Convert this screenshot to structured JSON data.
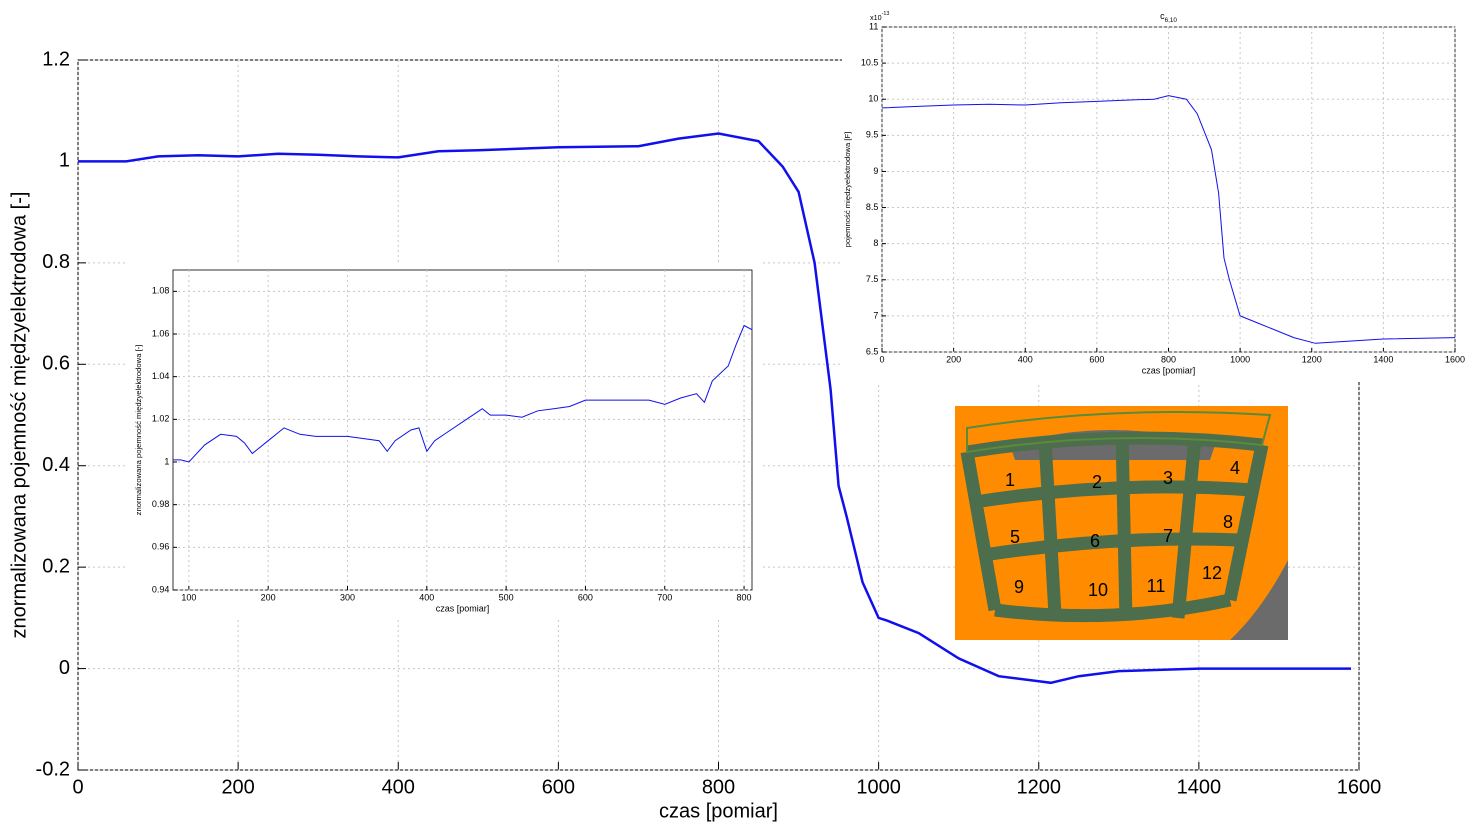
{
  "chart_data": [
    {
      "type": "line",
      "xlabel": "czas [pomiar]",
      "ylabel": "znormalizowana pojemność międzyelektrodowa [-]",
      "xlim": [
        0,
        1600
      ],
      "ylim": [
        -0.2,
        1.2
      ],
      "xticks": [
        0,
        200,
        400,
        600,
        800,
        1000,
        1200,
        1400,
        1600
      ],
      "yticks": [
        -0.2,
        0,
        0.2,
        0.4,
        0.6,
        0.8,
        1,
        1.2
      ],
      "grid": true,
      "color": "#1010ee",
      "x": [
        0,
        60,
        100,
        150,
        200,
        250,
        300,
        350,
        400,
        450,
        500,
        600,
        700,
        750,
        800,
        850,
        880,
        900,
        920,
        940,
        950,
        960,
        980,
        1000,
        1010,
        1050,
        1100,
        1150,
        1200,
        1215,
        1250,
        1300,
        1400,
        1500,
        1590
      ],
      "values": [
        1,
        1,
        1.01,
        1.012,
        1.01,
        1.015,
        1.013,
        1.01,
        1.008,
        1.02,
        1.022,
        1.028,
        1.03,
        1.045,
        1.055,
        1.04,
        0.99,
        0.94,
        0.8,
        0.55,
        0.36,
        0.3,
        0.17,
        0.1,
        0.095,
        0.07,
        0.02,
        -0.015,
        -0.025,
        -0.028,
        -0.015,
        -0.005,
        0,
        0,
        0
      ]
    },
    {
      "type": "line",
      "xlabel": "czas [pomiar]",
      "ylabel": "znormalizowana pojemność międzyelektrodowa [-]",
      "xlim": [
        80,
        810
      ],
      "ylim": [
        0.94,
        1.09
      ],
      "xticks": [
        100,
        200,
        300,
        400,
        500,
        600,
        700,
        800
      ],
      "yticks": [
        0.94,
        0.96,
        0.98,
        1,
        1.02,
        1.04,
        1.06,
        1.08
      ],
      "grid": true,
      "color": "#1010ee",
      "x": [
        80,
        90,
        100,
        120,
        140,
        160,
        170,
        180,
        200,
        220,
        240,
        260,
        300,
        340,
        350,
        360,
        380,
        390,
        400,
        410,
        430,
        450,
        470,
        480,
        500,
        520,
        540,
        560,
        580,
        600,
        640,
        680,
        700,
        720,
        740,
        750,
        760,
        780,
        790,
        800,
        810
      ],
      "values": [
        1.001,
        1.001,
        1.0,
        1.008,
        1.013,
        1.012,
        1.009,
        1.004,
        1.01,
        1.016,
        1.013,
        1.012,
        1.012,
        1.01,
        1.005,
        1.01,
        1.015,
        1.016,
        1.005,
        1.01,
        1.015,
        1.02,
        1.025,
        1.022,
        1.022,
        1.021,
        1.024,
        1.025,
        1.026,
        1.029,
        1.029,
        1.029,
        1.027,
        1.03,
        1.032,
        1.028,
        1.038,
        1.045,
        1.055,
        1.064,
        1.062
      ]
    },
    {
      "type": "line",
      "title": "c",
      "title_subscript": "6,10",
      "yscale_label": "x10",
      "yscale_exponent": "-13",
      "xlabel": "czas [pomiar]",
      "ylabel": "pojemność międzyelektrodowa [F]",
      "xlim": [
        0,
        1600
      ],
      "ylim": [
        6.5,
        11
      ],
      "xticks": [
        0,
        200,
        400,
        600,
        800,
        1000,
        1200,
        1400,
        1600
      ],
      "yticks": [
        6.5,
        7,
        7.5,
        8,
        8.5,
        9,
        9.5,
        10,
        10.5,
        11
      ],
      "grid": true,
      "color": "#1010ee",
      "x": [
        0,
        100,
        200,
        300,
        400,
        500,
        600,
        700,
        760,
        800,
        850,
        880,
        920,
        940,
        955,
        970,
        1000,
        1050,
        1150,
        1210,
        1300,
        1400,
        1600
      ],
      "values": [
        9.88,
        9.9,
        9.92,
        9.93,
        9.92,
        9.95,
        9.97,
        9.99,
        10.0,
        10.05,
        10.0,
        9.8,
        9.3,
        8.7,
        7.8,
        7.5,
        7.0,
        6.9,
        6.7,
        6.62,
        6.65,
        6.68,
        6.7
      ]
    }
  ],
  "diagram": {
    "labels": [
      "1",
      "2",
      "3",
      "4",
      "5",
      "6",
      "7",
      "8",
      "9",
      "10",
      "11",
      "12"
    ]
  }
}
